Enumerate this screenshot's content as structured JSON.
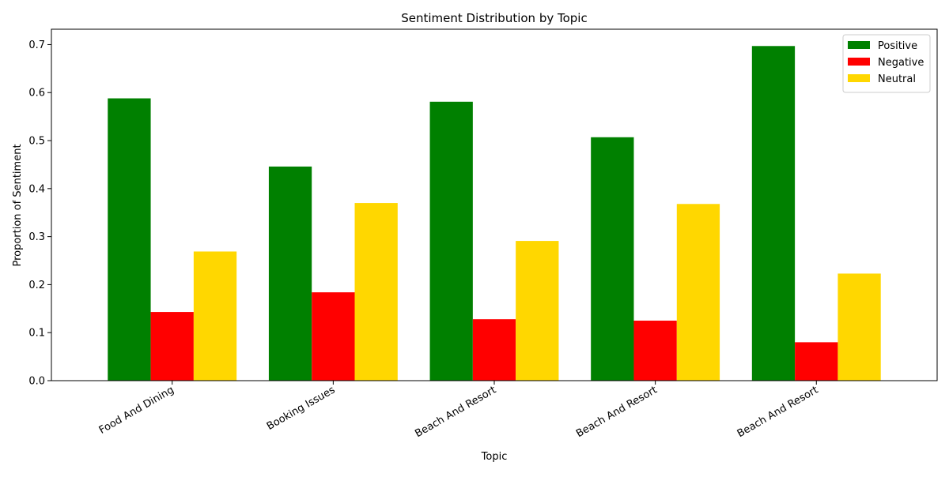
{
  "chart_data": {
    "type": "bar",
    "title": "Sentiment Distribution by Topic",
    "xlabel": "Topic",
    "ylabel": "Proportion of Sentiment",
    "categories": [
      "Food And Dining",
      "Booking Issues",
      "Beach And Resort",
      "Beach And Resort",
      "Beach And Resort"
    ],
    "series": [
      {
        "name": "Positive",
        "color": "#008000",
        "values": [
          0.588,
          0.446,
          0.581,
          0.507,
          0.697
        ]
      },
      {
        "name": "Negative",
        "color": "#ff0000",
        "values": [
          0.143,
          0.184,
          0.128,
          0.125,
          0.08
        ]
      },
      {
        "name": "Neutral",
        "color": "#ffd700",
        "values": [
          0.269,
          0.37,
          0.291,
          0.368,
          0.223
        ]
      }
    ],
    "ylim": [
      0,
      0.732
    ],
    "yticks": [
      "0.0",
      "0.1",
      "0.2",
      "0.3",
      "0.4",
      "0.5",
      "0.6",
      "0.7"
    ],
    "legend_position": "top-right",
    "grid": false
  }
}
